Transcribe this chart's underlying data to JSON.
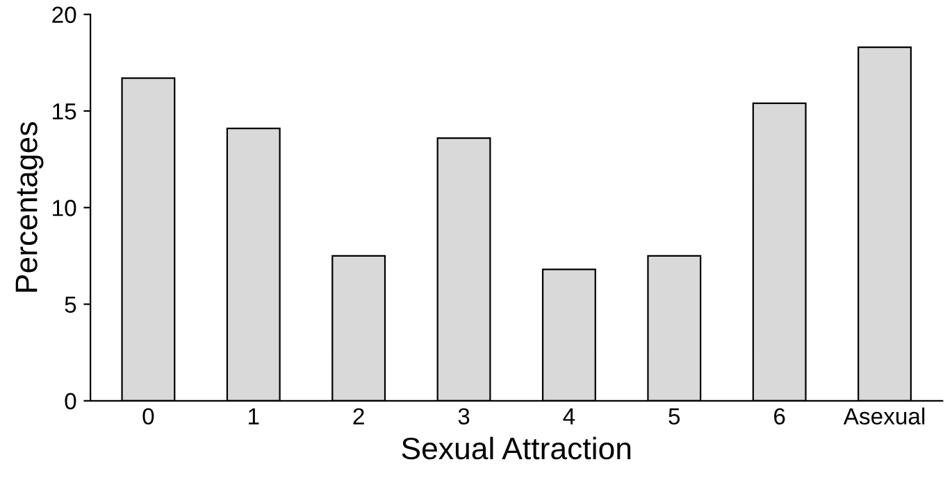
{
  "chart_data": {
    "type": "bar",
    "xlabel": "Sexual Attraction",
    "ylabel": "Percentages",
    "categories": [
      "0",
      "1",
      "2",
      "3",
      "4",
      "5",
      "6",
      "Asexual"
    ],
    "values": [
      16.7,
      14.1,
      7.5,
      13.6,
      6.8,
      7.5,
      15.4,
      18.3
    ],
    "color": "#d9d9d9",
    "ylim": [
      0,
      20
    ],
    "yticks": [
      0,
      5,
      10,
      15,
      20
    ],
    "grid": false
  }
}
